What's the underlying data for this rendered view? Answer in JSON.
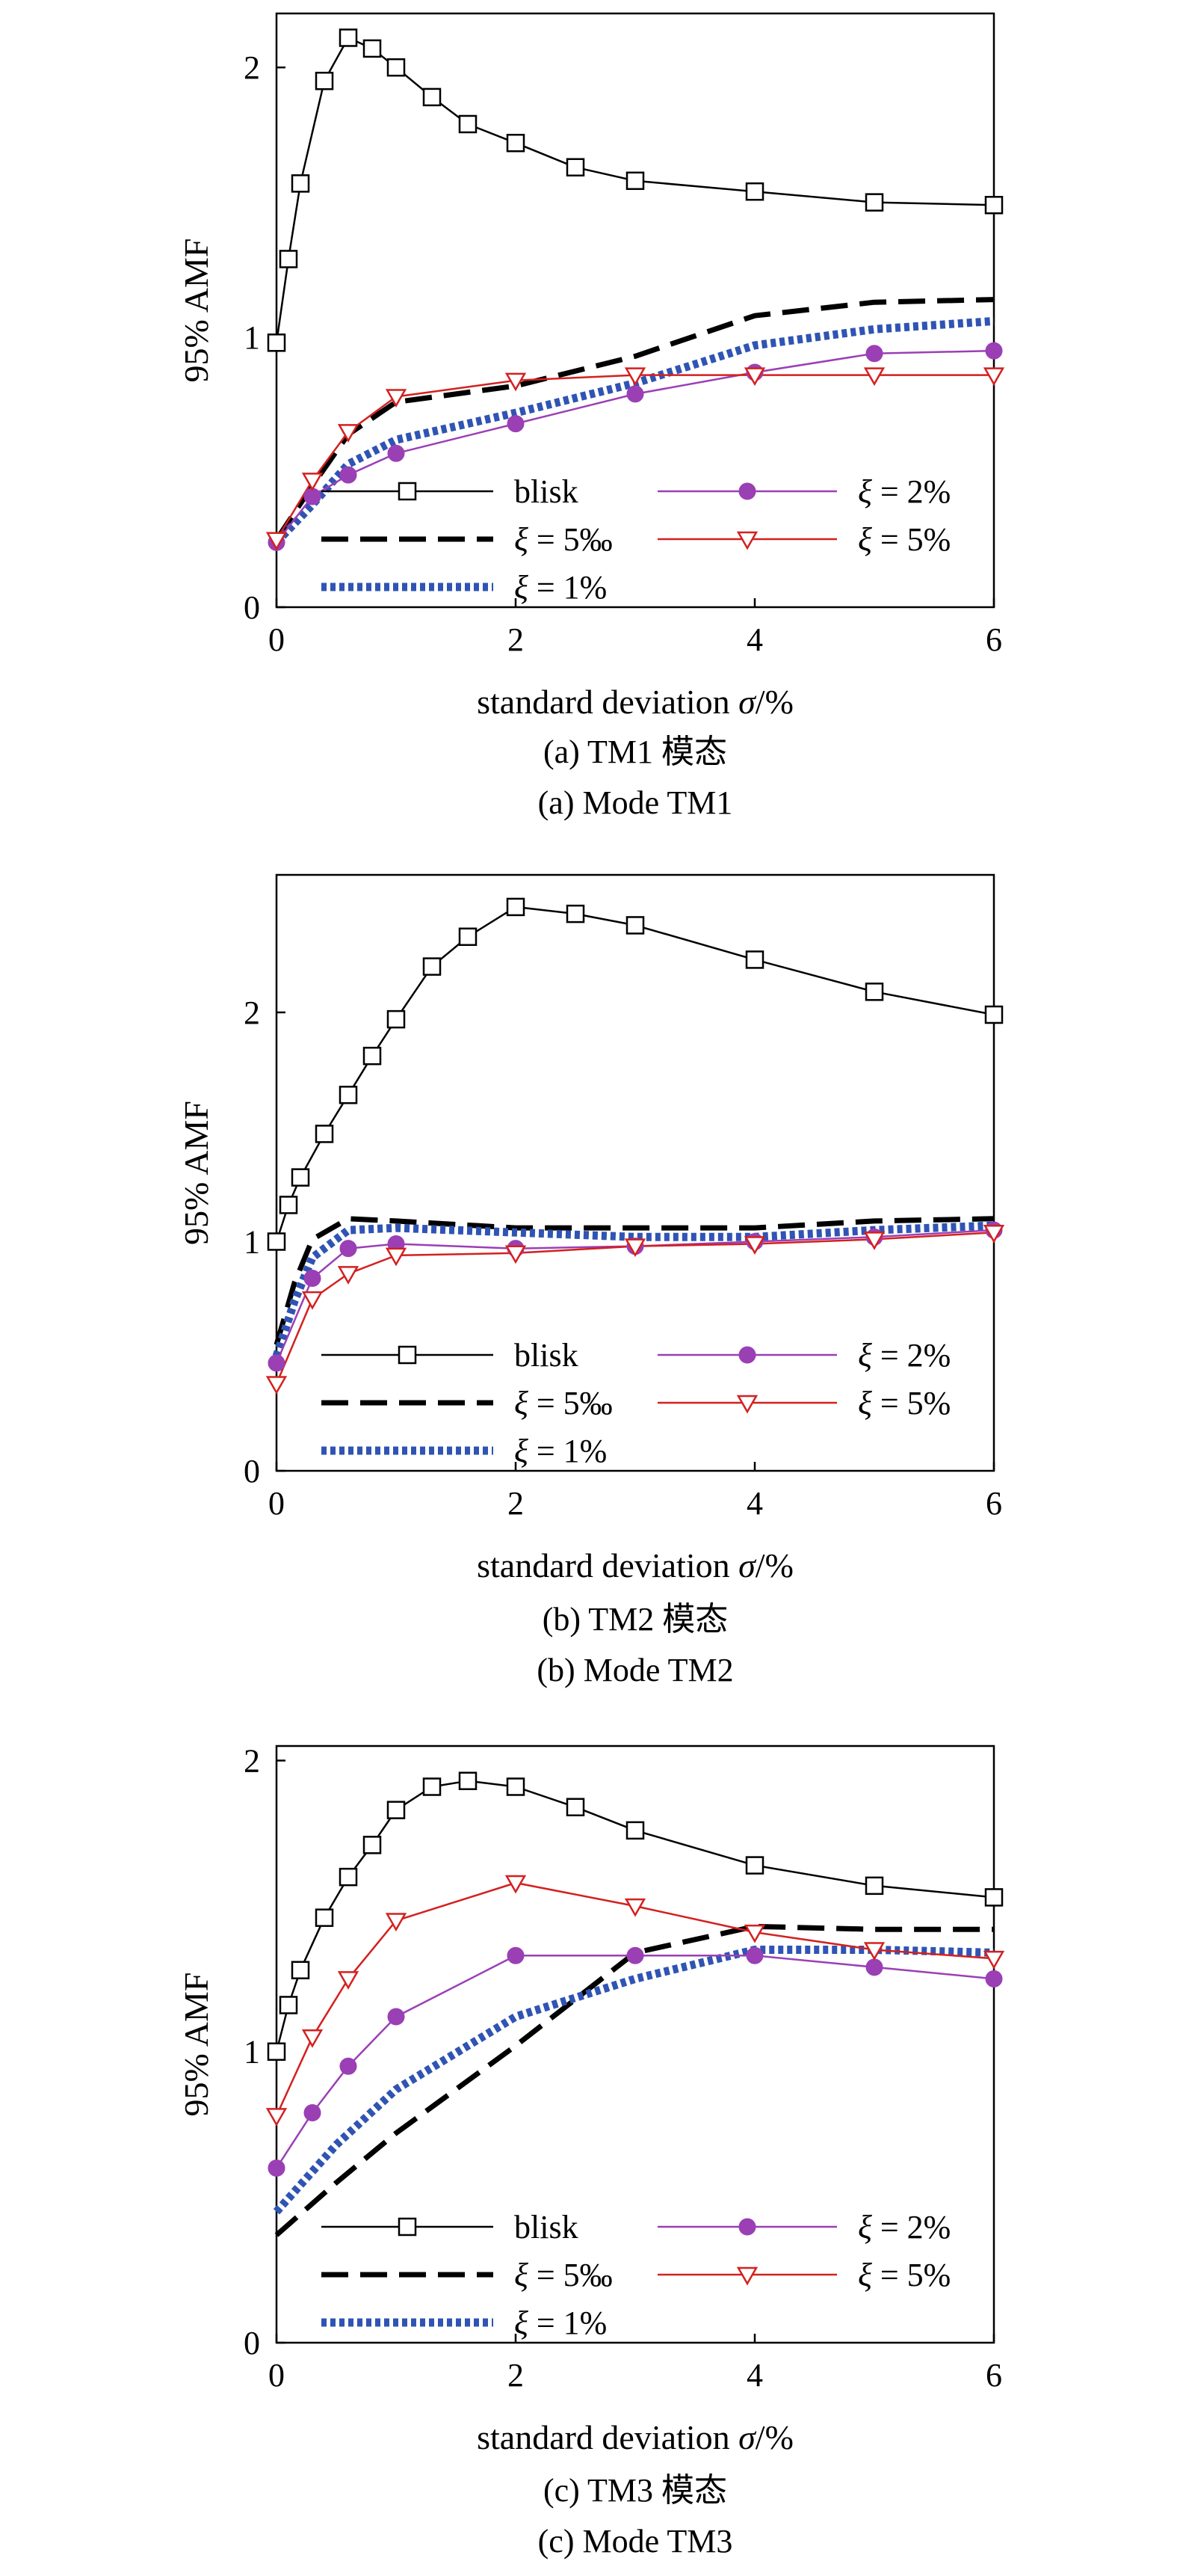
{
  "chart_data": [
    {
      "type": "line",
      "caption_cn": "(a) TM1 模态",
      "caption_en": "(a) Mode TM1",
      "xlabel": "standard deviation σ/%",
      "ylabel": "95% AMF",
      "xlim": [
        0,
        6
      ],
      "ylim": [
        0,
        2.2
      ],
      "xticks": [
        0,
        2,
        4,
        6
      ],
      "yticks": [
        0,
        1,
        2
      ],
      "legend_position": "bottom",
      "series": [
        {
          "name": "blisk",
          "style": "line-open-square",
          "color": "#000000",
          "x": [
            0,
            0.1,
            0.2,
            0.4,
            0.6,
            0.8,
            1.0,
            1.3,
            1.6,
            2.0,
            2.5,
            3.0,
            4.0,
            5.0,
            6.0
          ],
          "y": [
            0.98,
            1.29,
            1.57,
            1.95,
            2.11,
            2.07,
            2.0,
            1.89,
            1.79,
            1.72,
            1.63,
            1.58,
            1.54,
            1.5,
            1.49
          ]
        },
        {
          "name": "ξ = 5‰",
          "style": "dashed",
          "color": "#000000",
          "x": [
            0,
            0.3,
            0.6,
            1.0,
            2.0,
            3.0,
            4.0,
            5.0,
            6.0
          ],
          "y": [
            0.25,
            0.45,
            0.64,
            0.76,
            0.82,
            0.93,
            1.08,
            1.13,
            1.14
          ]
        },
        {
          "name": "ξ = 1%",
          "style": "dotted",
          "color": "#2f54b4",
          "x": [
            0,
            0.3,
            0.6,
            1.0,
            2.0,
            3.0,
            4.0,
            5.0,
            6.0
          ],
          "y": [
            0.24,
            0.38,
            0.53,
            0.62,
            0.72,
            0.83,
            0.97,
            1.03,
            1.06
          ]
        },
        {
          "name": "ξ = 2%",
          "style": "line-filled-circle",
          "color": "#9b3fb5",
          "x": [
            0,
            0.3,
            0.6,
            1.0,
            2.0,
            3.0,
            4.0,
            5.0,
            6.0
          ],
          "y": [
            0.24,
            0.41,
            0.49,
            0.57,
            0.68,
            0.79,
            0.87,
            0.94,
            0.95
          ]
        },
        {
          "name": "ξ = 5%",
          "style": "line-open-triangle-down",
          "color": "#d42020",
          "x": [
            0,
            0.3,
            0.6,
            1.0,
            2.0,
            3.0,
            4.0,
            5.0,
            6.0
          ],
          "y": [
            0.25,
            0.47,
            0.65,
            0.78,
            0.84,
            0.86,
            0.86,
            0.86,
            0.86
          ]
        }
      ]
    },
    {
      "type": "line",
      "caption_cn": "(b) TM2 模态",
      "caption_en": "(b) Mode TM2",
      "xlabel": "standard deviation σ/%",
      "ylabel": "95% AMF",
      "xlim": [
        0,
        6
      ],
      "ylim": [
        0,
        2.6
      ],
      "xticks": [
        0,
        2,
        4,
        6
      ],
      "yticks": [
        0,
        1,
        2
      ],
      "legend_position": "bottom",
      "series": [
        {
          "name": "blisk",
          "style": "line-open-square",
          "color": "#000000",
          "x": [
            0,
            0.1,
            0.2,
            0.4,
            0.6,
            0.8,
            1.0,
            1.3,
            1.6,
            2.0,
            2.5,
            3.0,
            4.0,
            5.0,
            6.0
          ],
          "y": [
            1.0,
            1.16,
            1.28,
            1.47,
            1.64,
            1.81,
            1.97,
            2.2,
            2.33,
            2.46,
            2.43,
            2.38,
            2.23,
            2.09,
            1.99
          ]
        },
        {
          "name": "ξ = 5‰",
          "style": "dashed",
          "color": "#000000",
          "x": [
            0,
            0.15,
            0.3,
            0.6,
            1.0,
            2.0,
            3.0,
            4.0,
            5.0,
            6.0
          ],
          "y": [
            0.55,
            0.82,
            1.01,
            1.1,
            1.09,
            1.06,
            1.06,
            1.06,
            1.09,
            1.1
          ]
        },
        {
          "name": "ξ = 1%",
          "style": "dotted",
          "color": "#2f54b4",
          "x": [
            0,
            0.15,
            0.3,
            0.6,
            1.0,
            2.0,
            3.0,
            4.0,
            5.0,
            6.0
          ],
          "y": [
            0.5,
            0.74,
            0.93,
            1.05,
            1.06,
            1.04,
            1.02,
            1.02,
            1.05,
            1.07
          ]
        },
        {
          "name": "ξ = 2%",
          "style": "line-filled-circle",
          "color": "#9b3fb5",
          "x": [
            0,
            0.3,
            0.6,
            1.0,
            2.0,
            3.0,
            4.0,
            5.0,
            6.0
          ],
          "y": [
            0.47,
            0.84,
            0.97,
            0.99,
            0.97,
            0.98,
            1.0,
            1.02,
            1.05
          ]
        },
        {
          "name": "ξ = 5%",
          "style": "line-open-triangle-down",
          "color": "#d42020",
          "x": [
            0,
            0.3,
            0.6,
            1.0,
            2.0,
            3.0,
            4.0,
            5.0,
            6.0
          ],
          "y": [
            0.38,
            0.75,
            0.86,
            0.94,
            0.95,
            0.98,
            0.99,
            1.01,
            1.04
          ]
        }
      ]
    },
    {
      "type": "line",
      "caption_cn": "(c) TM3 模态",
      "caption_en": "(c) Mode TM3",
      "xlabel": "standard deviation σ/%",
      "ylabel": "95% AMF",
      "xlim": [
        0,
        6
      ],
      "ylim": [
        0,
        2.05
      ],
      "xticks": [
        0,
        2,
        4,
        6
      ],
      "yticks": [
        0,
        1,
        2
      ],
      "legend_position": "bottom",
      "series": [
        {
          "name": "blisk",
          "style": "line-open-square",
          "color": "#000000",
          "x": [
            0,
            0.1,
            0.2,
            0.4,
            0.6,
            0.8,
            1.0,
            1.3,
            1.6,
            2.0,
            2.5,
            3.0,
            4.0,
            5.0,
            6.0
          ],
          "y": [
            1.0,
            1.16,
            1.28,
            1.46,
            1.6,
            1.71,
            1.83,
            1.91,
            1.93,
            1.91,
            1.84,
            1.76,
            1.64,
            1.57,
            1.53
          ]
        },
        {
          "name": "ξ = 5‰",
          "style": "dashed",
          "color": "#000000",
          "x": [
            0,
            0.5,
            1.0,
            2.0,
            3.0,
            4.0,
            5.0,
            6.0
          ],
          "y": [
            0.37,
            0.55,
            0.72,
            1.02,
            1.34,
            1.43,
            1.42,
            1.42
          ]
        },
        {
          "name": "ξ = 1%",
          "style": "dotted",
          "color": "#2f54b4",
          "x": [
            0,
            0.5,
            1.0,
            2.0,
            3.0,
            4.0,
            5.0,
            6.0
          ],
          "y": [
            0.45,
            0.68,
            0.87,
            1.12,
            1.25,
            1.35,
            1.35,
            1.34
          ]
        },
        {
          "name": "ξ = 2%",
          "style": "line-filled-circle",
          "color": "#9b3fb5",
          "x": [
            0,
            0.3,
            0.6,
            1.0,
            2.0,
            3.0,
            4.0,
            5.0,
            6.0
          ],
          "y": [
            0.6,
            0.79,
            0.95,
            1.12,
            1.33,
            1.33,
            1.33,
            1.29,
            1.25
          ]
        },
        {
          "name": "ξ = 5%",
          "style": "line-open-triangle-down",
          "color": "#d42020",
          "x": [
            0,
            0.3,
            0.6,
            1.0,
            2.0,
            3.0,
            4.0,
            5.0,
            6.0
          ],
          "y": [
            0.78,
            1.05,
            1.25,
            1.45,
            1.58,
            1.5,
            1.41,
            1.35,
            1.32
          ]
        }
      ]
    }
  ]
}
